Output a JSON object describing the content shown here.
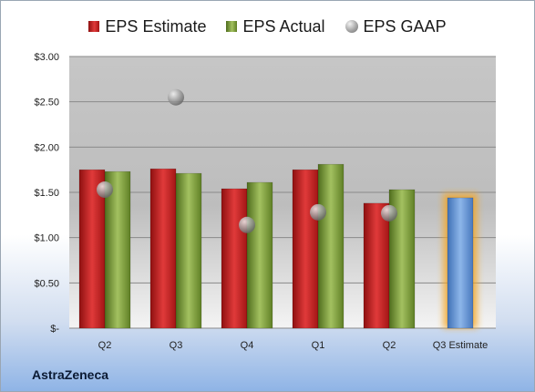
{
  "legend": {
    "estimate": "EPS Estimate",
    "actual": "EPS Actual",
    "gaap": "EPS GAAP"
  },
  "company": "AstraZeneca",
  "colors": {
    "estimate": "#c81e1e",
    "actual": "#7ea13a",
    "gaap": "#a0a0a0",
    "forecast": "#6c9bd6",
    "forecast_glow": "#f5a623"
  },
  "chart_data": {
    "type": "bar",
    "categories": [
      "Q2",
      "Q3",
      "Q4",
      "Q1",
      "Q2",
      "Q3 Estimate"
    ],
    "series": [
      {
        "name": "EPS Estimate",
        "values": [
          1.75,
          1.76,
          1.54,
          1.75,
          1.38,
          null
        ]
      },
      {
        "name": "EPS Actual",
        "values": [
          1.73,
          1.71,
          1.61,
          1.81,
          1.53,
          null
        ]
      },
      {
        "name": "EPS GAAP",
        "kind": "scatter",
        "values": [
          1.53,
          2.55,
          1.14,
          1.28,
          1.27,
          null
        ]
      },
      {
        "name": "Q3 Estimate",
        "values": [
          null,
          null,
          null,
          null,
          null,
          1.44
        ]
      }
    ],
    "yticks": [
      "$3.00",
      "$2.50",
      "$2.00",
      "$1.50",
      "$1.00",
      "$0.50",
      "$-"
    ],
    "ylim": [
      0,
      3
    ],
    "legend_position": "top"
  }
}
